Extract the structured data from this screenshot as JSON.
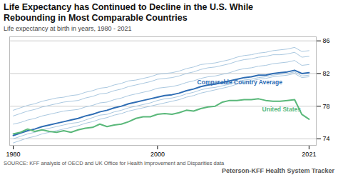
{
  "chart_data": {
    "type": "line",
    "title": "Life Expectancy has Continued to Decline in the U.S. While\nRebounding in Most Comparable Countries",
    "subtitle": "Life expectancy at birth in years, 1980 - 2021",
    "source": "SOURCE: KFF analysis of OECD and UK Office for Health Improvement and Disparities data",
    "brand": [
      "Peterson-KFF",
      "Health System Tracker"
    ],
    "x": [
      1980,
      1981,
      1982,
      1983,
      1984,
      1985,
      1986,
      1987,
      1988,
      1989,
      1990,
      1991,
      1992,
      1993,
      1994,
      1995,
      1996,
      1997,
      1998,
      1999,
      2000,
      2001,
      2002,
      2003,
      2004,
      2005,
      2006,
      2007,
      2008,
      2009,
      2010,
      2011,
      2012,
      2013,
      2014,
      2015,
      2016,
      2017,
      2018,
      2019,
      2020,
      2021
    ],
    "xlim": [
      1979.5,
      2022
    ],
    "xticks": [
      1980,
      2000,
      2021
    ],
    "ylim": [
      73.2,
      86.5
    ],
    "yticks": [
      74,
      78,
      82,
      86
    ],
    "grid": true,
    "series": [
      {
        "color": "#aac8e0",
        "values": [
          73.5,
          73.8,
          74.1,
          74.3,
          74.6,
          74.8,
          75.0,
          75.2,
          75.4,
          75.6,
          75.9,
          76.1,
          76.4,
          76.6,
          76.9,
          77.1,
          77.4,
          77.6,
          77.8,
          78.0,
          78.2,
          78.4,
          78.6,
          78.8,
          79.1,
          79.3,
          79.6,
          79.8,
          80.0,
          80.2,
          80.4,
          80.7,
          80.9,
          81.1,
          81.3,
          81.4,
          81.6,
          81.7,
          81.8,
          82.0,
          81.5,
          81.6
        ]
      },
      {
        "color": "#aac8e0",
        "values": [
          74.0,
          74.3,
          74.6,
          74.8,
          75.1,
          75.3,
          75.5,
          75.7,
          75.9,
          76.0,
          76.3,
          76.6,
          76.9,
          77.0,
          77.3,
          77.5,
          77.8,
          78.0,
          78.2,
          78.4,
          78.7,
          78.9,
          79.0,
          79.2,
          79.5,
          79.7,
          80.0,
          80.2,
          80.3,
          80.5,
          80.7,
          81.0,
          81.2,
          81.3,
          81.5,
          81.6,
          81.8,
          81.9,
          82.0,
          82.2,
          81.7,
          81.8
        ]
      },
      {
        "color": "#aac8e0",
        "values": [
          75.8,
          76.0,
          76.3,
          76.5,
          76.8,
          77.0,
          77.2,
          77.4,
          77.5,
          77.6,
          77.9,
          78.1,
          78.4,
          78.5,
          78.8,
          79.0,
          79.3,
          79.5,
          79.7,
          79.9,
          80.2,
          80.3,
          80.4,
          80.6,
          80.9,
          81.1,
          81.4,
          81.6,
          81.7,
          81.9,
          82.1,
          82.4,
          82.6,
          82.7,
          82.9,
          83.0,
          83.2,
          83.3,
          83.4,
          83.6,
          83.0,
          83.1
        ]
      },
      {
        "color": "#aac8e0",
        "values": [
          76.8,
          77.1,
          77.4,
          77.6,
          77.9,
          78.1,
          78.3,
          78.5,
          78.6,
          78.7,
          79.0,
          79.2,
          79.5,
          79.6,
          79.9,
          80.1,
          80.4,
          80.6,
          80.8,
          81.0,
          81.3,
          81.4,
          81.5,
          81.7,
          82.0,
          82.2,
          82.5,
          82.7,
          82.8,
          83.0,
          83.2,
          83.5,
          83.7,
          83.8,
          84.0,
          84.1,
          84.3,
          84.3,
          84.4,
          84.6,
          84.0,
          84.1
        ]
      },
      {
        "color": "#aac8e0",
        "values": [
          77.5,
          77.8,
          78.1,
          78.3,
          78.6,
          78.8,
          79.0,
          79.1,
          79.3,
          79.4,
          79.7,
          79.9,
          80.2,
          80.3,
          80.6,
          80.8,
          81.1,
          81.2,
          81.4,
          81.6,
          81.9,
          82.0,
          82.1,
          82.3,
          82.6,
          82.8,
          83.1,
          83.2,
          83.3,
          83.5,
          83.7,
          84.0,
          84.2,
          84.3,
          84.5,
          84.6,
          84.8,
          84.9,
          85.0,
          85.2,
          84.7,
          84.8
        ]
      },
      {
        "color": "#2e6db4",
        "values": [
          74.4,
          74.7,
          75.0,
          75.2,
          75.5,
          75.7,
          75.9,
          76.1,
          76.3,
          76.5,
          76.8,
          77.0,
          77.3,
          77.5,
          77.8,
          78.0,
          78.3,
          78.5,
          78.7,
          78.9,
          79.1,
          79.3,
          79.4,
          79.6,
          79.9,
          80.1,
          80.4,
          80.6,
          80.7,
          80.9,
          81.1,
          81.3,
          81.5,
          81.6,
          81.8,
          81.8,
          82.0,
          82.1,
          82.2,
          82.4,
          82.0,
          82.1
        ]
      },
      {
        "color": "#5ab87a",
        "values": [
          74.6,
          74.8,
          75.2,
          74.9,
          75.1,
          74.9,
          74.8,
          75.0,
          74.8,
          75.1,
          75.3,
          75.4,
          75.8,
          75.5,
          75.7,
          75.8,
          76.1,
          76.5,
          76.7,
          76.7,
          77.0,
          77.1,
          77.0,
          77.2,
          77.5,
          77.4,
          77.7,
          77.9,
          78.0,
          78.5,
          78.7,
          78.7,
          78.8,
          78.8,
          78.9,
          78.7,
          78.6,
          78.6,
          78.7,
          78.8,
          77.0,
          76.4
        ]
      }
    ],
    "annotations": [
      {
        "text": "Comparable Country Average",
        "x": 2005.5,
        "y": 80.65,
        "color": "#2e6db4"
      },
      {
        "text": "United States",
        "x": 2014.5,
        "y": 77.35,
        "color": "#5ab87a"
      }
    ]
  }
}
